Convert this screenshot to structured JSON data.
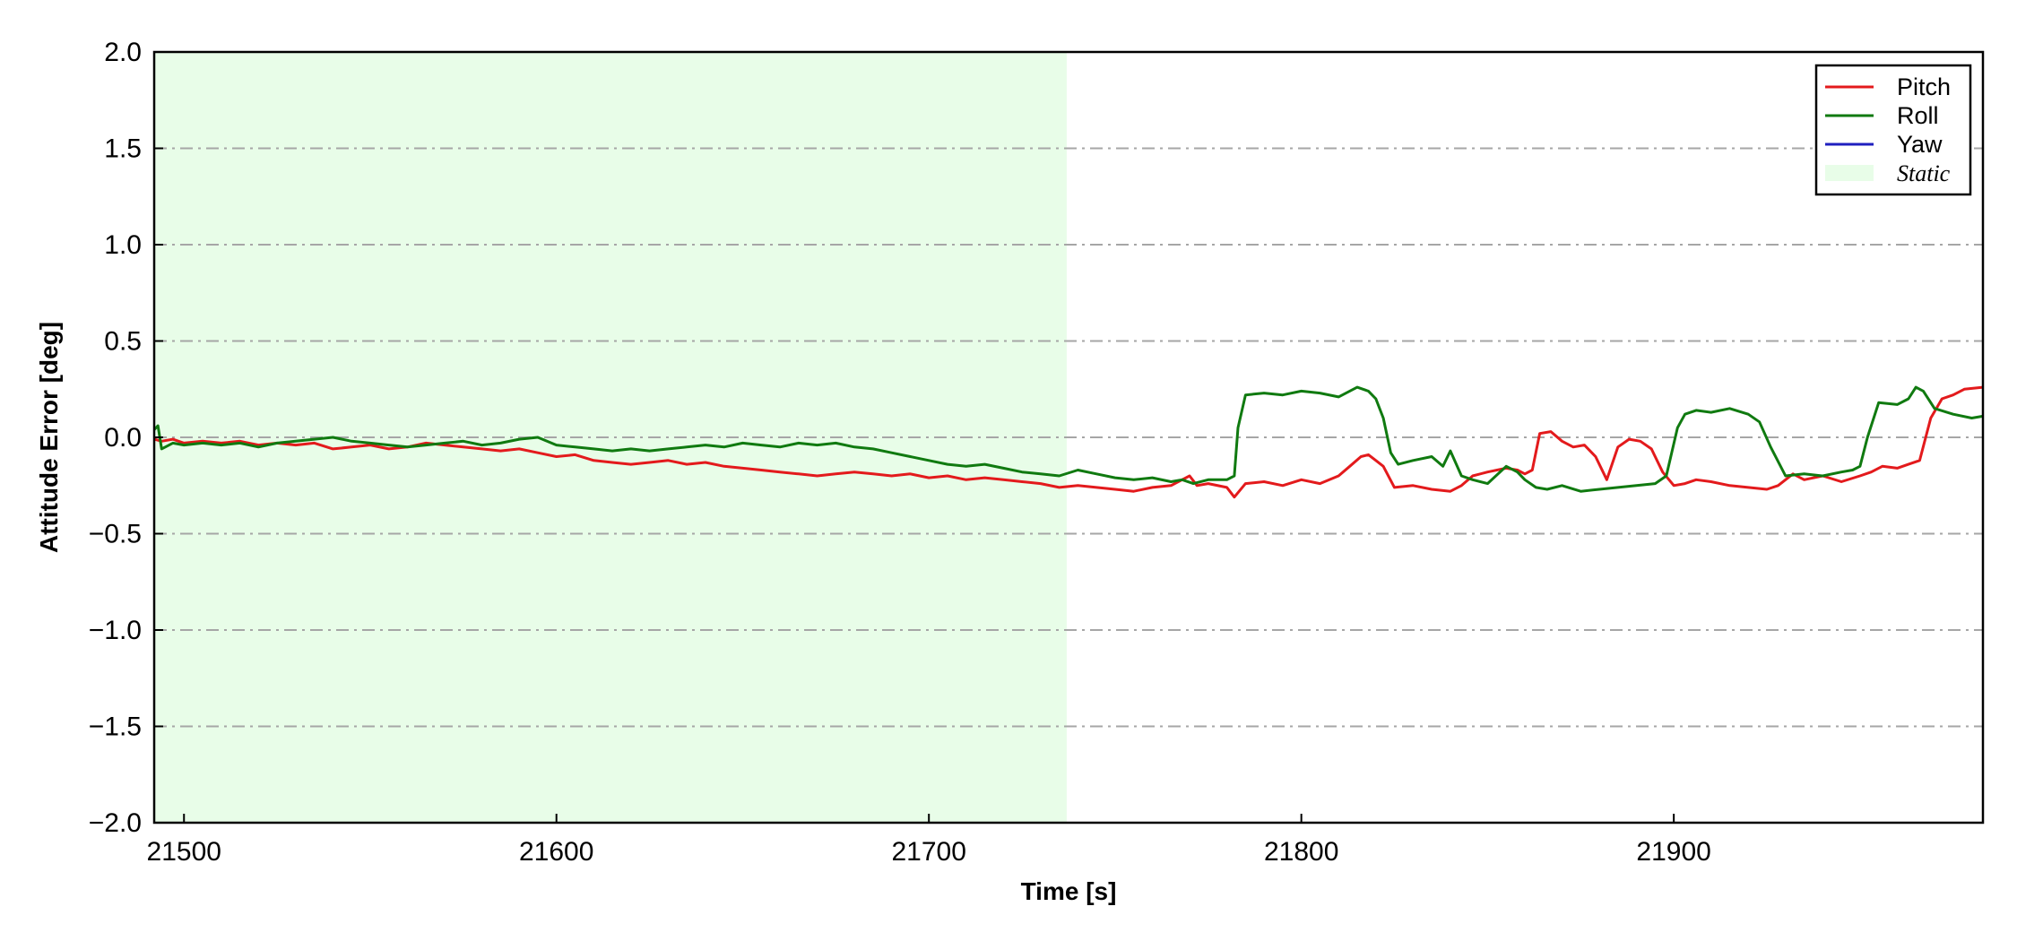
{
  "chart_data": {
    "type": "line",
    "title": "",
    "xlabel": "Time [s]",
    "ylabel": "Attitude Error [deg]",
    "xlim": [
      21492,
      21983
    ],
    "ylim": [
      -2.0,
      2.0
    ],
    "x_ticks": [
      21500,
      21600,
      21700,
      21800,
      21900
    ],
    "x_tick_labels": [
      "21500",
      "21600",
      "21700",
      "21800",
      "21900"
    ],
    "y_ticks": [
      -2.0,
      -1.5,
      -1.0,
      -0.5,
      0.0,
      0.5,
      1.0,
      1.5,
      2.0
    ],
    "y_tick_labels": [
      "−2.0",
      "−1.5",
      "−1.0",
      "−0.5",
      "0.0",
      "0.5",
      "1.0",
      "1.5",
      "2.0"
    ],
    "grid": {
      "axis": "y",
      "style": "dash-dot",
      "color": "#a6a6a6"
    },
    "legend_position": "top-right",
    "static_region": {
      "label": "Static",
      "x_start": 21492,
      "x_end": 21737,
      "color": "#e8fde8"
    },
    "series": [
      {
        "name": "Pitch",
        "color": "#e31a1c",
        "x": [
          21492,
          21494,
          21497,
          21500,
          21505,
          21510,
          21515,
          21520,
          21525,
          21530,
          21535,
          21540,
          21545,
          21550,
          21555,
          21560,
          21565,
          21570,
          21575,
          21580,
          21585,
          21590,
          21595,
          21600,
          21605,
          21610,
          21615,
          21620,
          21625,
          21630,
          21635,
          21640,
          21645,
          21650,
          21655,
          21660,
          21665,
          21670,
          21675,
          21680,
          21685,
          21690,
          21695,
          21700,
          21705,
          21710,
          21715,
          21720,
          21725,
          21730,
          21735,
          21740,
          21745,
          21750,
          21755,
          21760,
          21765,
          21768,
          21770,
          21772,
          21775,
          21780,
          21782,
          21785,
          21790,
          21795,
          21800,
          21805,
          21810,
          21813,
          21816,
          21818,
          21820,
          21822,
          21825,
          21830,
          21835,
          21840,
          21843,
          21846,
          21850,
          21855,
          21858,
          21860,
          21862,
          21864,
          21867,
          21870,
          21873,
          21876,
          21879,
          21882,
          21885,
          21888,
          21891,
          21894,
          21897,
          21900,
          21903,
          21906,
          21910,
          21915,
          21920,
          21925,
          21928,
          21932,
          21935,
          21940,
          21945,
          21950,
          21953,
          21956,
          21960,
          21963,
          21966,
          21969,
          21972,
          21975,
          21978,
          21983
        ],
        "values": [
          -0.01,
          -0.02,
          -0.01,
          -0.03,
          -0.02,
          -0.03,
          -0.02,
          -0.04,
          -0.03,
          -0.04,
          -0.03,
          -0.06,
          -0.05,
          -0.04,
          -0.06,
          -0.05,
          -0.03,
          -0.04,
          -0.05,
          -0.06,
          -0.07,
          -0.06,
          -0.08,
          -0.1,
          -0.09,
          -0.12,
          -0.13,
          -0.14,
          -0.13,
          -0.12,
          -0.14,
          -0.13,
          -0.15,
          -0.16,
          -0.17,
          -0.18,
          -0.19,
          -0.2,
          -0.19,
          -0.18,
          -0.19,
          -0.2,
          -0.19,
          -0.21,
          -0.2,
          -0.22,
          -0.21,
          -0.22,
          -0.23,
          -0.24,
          -0.26,
          -0.25,
          -0.26,
          -0.27,
          -0.28,
          -0.26,
          -0.25,
          -0.22,
          -0.2,
          -0.25,
          -0.24,
          -0.26,
          -0.31,
          -0.24,
          -0.23,
          -0.25,
          -0.22,
          -0.24,
          -0.2,
          -0.15,
          -0.1,
          -0.09,
          -0.12,
          -0.15,
          -0.26,
          -0.25,
          -0.27,
          -0.28,
          -0.25,
          -0.2,
          -0.18,
          -0.16,
          -0.17,
          -0.19,
          -0.17,
          0.02,
          0.03,
          -0.02,
          -0.05,
          -0.04,
          -0.1,
          -0.22,
          -0.05,
          -0.01,
          -0.02,
          -0.06,
          -0.18,
          -0.25,
          -0.24,
          -0.22,
          -0.23,
          -0.25,
          -0.26,
          -0.27,
          -0.25,
          -0.19,
          -0.22,
          -0.2,
          -0.23,
          -0.2,
          -0.18,
          -0.15,
          -0.16,
          -0.14,
          -0.12,
          0.1,
          0.2,
          0.22,
          0.25,
          0.26
        ]
      },
      {
        "name": "Roll",
        "color": "#107a10",
        "x": [
          21492,
          21493,
          21494,
          21497,
          21500,
          21505,
          21510,
          21515,
          21520,
          21525,
          21530,
          21535,
          21540,
          21545,
          21550,
          21555,
          21560,
          21565,
          21570,
          21575,
          21580,
          21585,
          21590,
          21595,
          21600,
          21605,
          21610,
          21615,
          21620,
          21625,
          21630,
          21635,
          21640,
          21645,
          21650,
          21655,
          21660,
          21665,
          21670,
          21675,
          21680,
          21685,
          21690,
          21695,
          21700,
          21705,
          21710,
          21715,
          21720,
          21725,
          21730,
          21735,
          21740,
          21745,
          21750,
          21755,
          21760,
          21765,
          21768,
          21771,
          21775,
          21780,
          21782,
          21783,
          21785,
          21790,
          21795,
          21800,
          21805,
          21810,
          21815,
          21818,
          21820,
          21822,
          21824,
          21826,
          21830,
          21835,
          21838,
          21840,
          21843,
          21846,
          21850,
          21855,
          21858,
          21860,
          21863,
          21866,
          21870,
          21875,
          21880,
          21885,
          21890,
          21895,
          21898,
          21901,
          21903,
          21906,
          21910,
          21915,
          21920,
          21923,
          21926,
          21930,
          21935,
          21940,
          21945,
          21948,
          21950,
          21952,
          21955,
          21960,
          21963,
          21965,
          21967,
          21970,
          21975,
          21980,
          21983
        ],
        "values": [
          0.04,
          0.06,
          -0.06,
          -0.03,
          -0.04,
          -0.03,
          -0.04,
          -0.03,
          -0.05,
          -0.03,
          -0.02,
          -0.01,
          0.0,
          -0.02,
          -0.03,
          -0.04,
          -0.05,
          -0.04,
          -0.03,
          -0.02,
          -0.04,
          -0.03,
          -0.01,
          0.0,
          -0.04,
          -0.05,
          -0.06,
          -0.07,
          -0.06,
          -0.07,
          -0.06,
          -0.05,
          -0.04,
          -0.05,
          -0.03,
          -0.04,
          -0.05,
          -0.03,
          -0.04,
          -0.03,
          -0.05,
          -0.06,
          -0.08,
          -0.1,
          -0.12,
          -0.14,
          -0.15,
          -0.14,
          -0.16,
          -0.18,
          -0.19,
          -0.2,
          -0.17,
          -0.19,
          -0.21,
          -0.22,
          -0.21,
          -0.23,
          -0.22,
          -0.24,
          -0.22,
          -0.22,
          -0.2,
          0.05,
          0.22,
          0.23,
          0.22,
          0.24,
          0.23,
          0.21,
          0.26,
          0.24,
          0.2,
          0.1,
          -0.08,
          -0.14,
          -0.12,
          -0.1,
          -0.15,
          -0.07,
          -0.2,
          -0.22,
          -0.24,
          -0.15,
          -0.18,
          -0.22,
          -0.26,
          -0.27,
          -0.25,
          -0.28,
          -0.27,
          -0.26,
          -0.25,
          -0.24,
          -0.2,
          0.05,
          0.12,
          0.14,
          0.13,
          0.15,
          0.12,
          0.08,
          -0.05,
          -0.2,
          -0.19,
          -0.2,
          -0.18,
          -0.17,
          -0.15,
          0.0,
          0.18,
          0.17,
          0.2,
          0.26,
          0.24,
          0.15,
          0.12,
          0.1,
          0.11
        ]
      },
      {
        "name": "Yaw",
        "color": "#1f1fbf",
        "x": [],
        "values": []
      }
    ]
  }
}
